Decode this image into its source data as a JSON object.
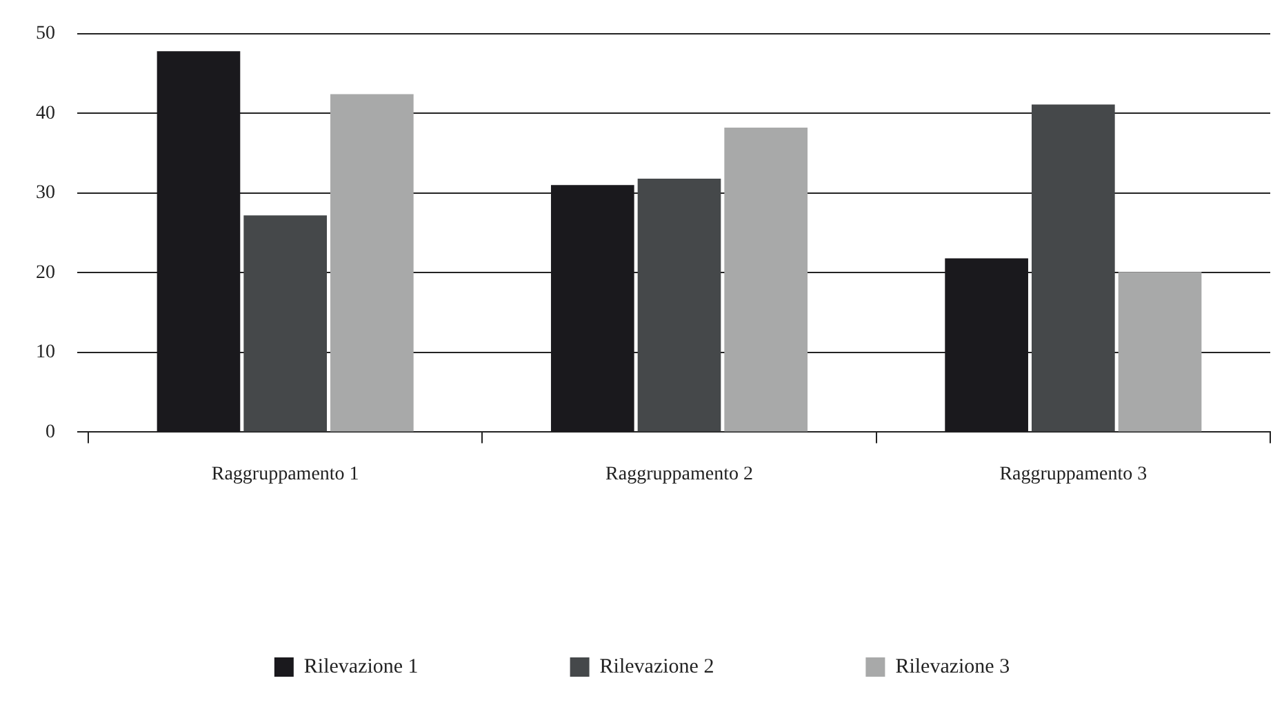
{
  "chart_data": {
    "type": "bar",
    "categories": [
      "Raggruppamento 1",
      "Raggruppamento 2",
      "Raggruppamento 3"
    ],
    "series": [
      {
        "name": "Rilevazione 1",
        "color": "#1a191d",
        "values": [
          47.8,
          31.0,
          21.8
        ]
      },
      {
        "name": "Rilevazione 2",
        "color": "#45484a",
        "values": [
          27.2,
          31.8,
          41.1
        ]
      },
      {
        "name": "Rilevazione 3",
        "color": "#a8a9a9",
        "values": [
          42.4,
          38.2,
          20.1
        ]
      }
    ],
    "ylim": [
      0,
      50
    ],
    "yticks": [
      0,
      10,
      20,
      30,
      40,
      50
    ],
    "grid": "y",
    "legend": "bottom"
  }
}
